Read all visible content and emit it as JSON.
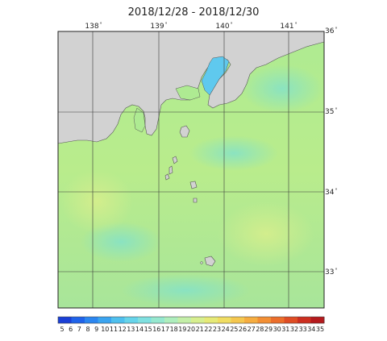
{
  "title": "2018/12/28 - 2018/12/30",
  "longitude_labels": [
    "138",
    "139",
    "140",
    "141"
  ],
  "latitude_labels": [
    "36",
    "35",
    "34",
    "33"
  ],
  "degree_symbol": "°",
  "colorbar": {
    "ticks": [
      "5",
      "6",
      "7",
      "8",
      "9",
      "10",
      "11",
      "12",
      "13",
      "14",
      "15",
      "16",
      "17",
      "18",
      "19",
      "20",
      "21",
      "22",
      "23",
      "24",
      "25",
      "26",
      "27",
      "28",
      "29",
      "30",
      "31",
      "32",
      "33",
      "34",
      "35"
    ],
    "colors": [
      "#1a3fd6",
      "#1f63ea",
      "#2b86f0",
      "#3aa4f0",
      "#4fc0ee",
      "#66d4ea",
      "#7fe0e0",
      "#96e8cf",
      "#aeeebd",
      "#c4efa8",
      "#d7ef8f",
      "#e6ea77",
      "#f0dd62",
      "#f5c74f",
      "#f6ad40",
      "#f38f34",
      "#ec6e2b",
      "#df4d24",
      "#cc2f20",
      "#b51a1d"
    ]
  },
  "map": {
    "land_color": "#d2d2d2",
    "sea_color": "#a9e989"
  }
}
